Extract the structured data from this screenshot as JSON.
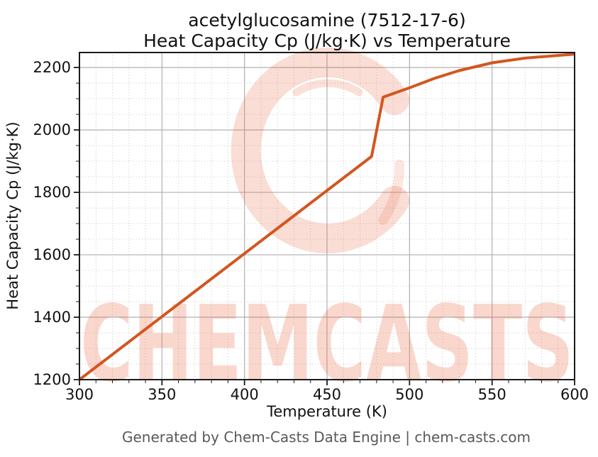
{
  "figure": {
    "footer": "Generated by Chem-Casts Data Engine | chem-casts.com"
  },
  "watermark": {
    "text": "CHEMCASTS",
    "logo": "brush-stroke-C-ring",
    "brand_color": "#e8643c"
  },
  "chart_data": {
    "type": "line",
    "title_line1": "acetylglucosamine (7512-17-6)",
    "title_line2": "Heat Capacity Cp (J/kg·K) vs Temperature",
    "xlabel": "Temperature (K)",
    "ylabel": "Heat Capacity Cp (J/kg·K)",
    "xlim": [
      300,
      600
    ],
    "ylim": [
      1200,
      2248
    ],
    "x_major_ticks": [
      300,
      350,
      400,
      450,
      500,
      550,
      600
    ],
    "y_major_ticks": [
      1200,
      1400,
      1600,
      1800,
      2000,
      2200
    ],
    "x_minor_step": 10,
    "y_minor_step": 50,
    "grid": {
      "major": "solid",
      "minor": "dotted",
      "major_color": "#b0b0b0",
      "minor_color": "#c9c9c9"
    },
    "line_color": "#d3561f",
    "line_width": 4,
    "series": [
      {
        "name": "Heat Capacity Cp",
        "points": [
          [
            300,
            1200
          ],
          [
            477,
            1915
          ],
          [
            484,
            2105
          ],
          [
            500,
            2135
          ],
          [
            515,
            2165
          ],
          [
            530,
            2190
          ],
          [
            550,
            2215
          ],
          [
            570,
            2230
          ],
          [
            600,
            2243
          ]
        ]
      }
    ],
    "annotations": {
      "phase_transition_jump": {
        "from": [
          477,
          1915
        ],
        "to": [
          484,
          2105
        ]
      }
    }
  }
}
